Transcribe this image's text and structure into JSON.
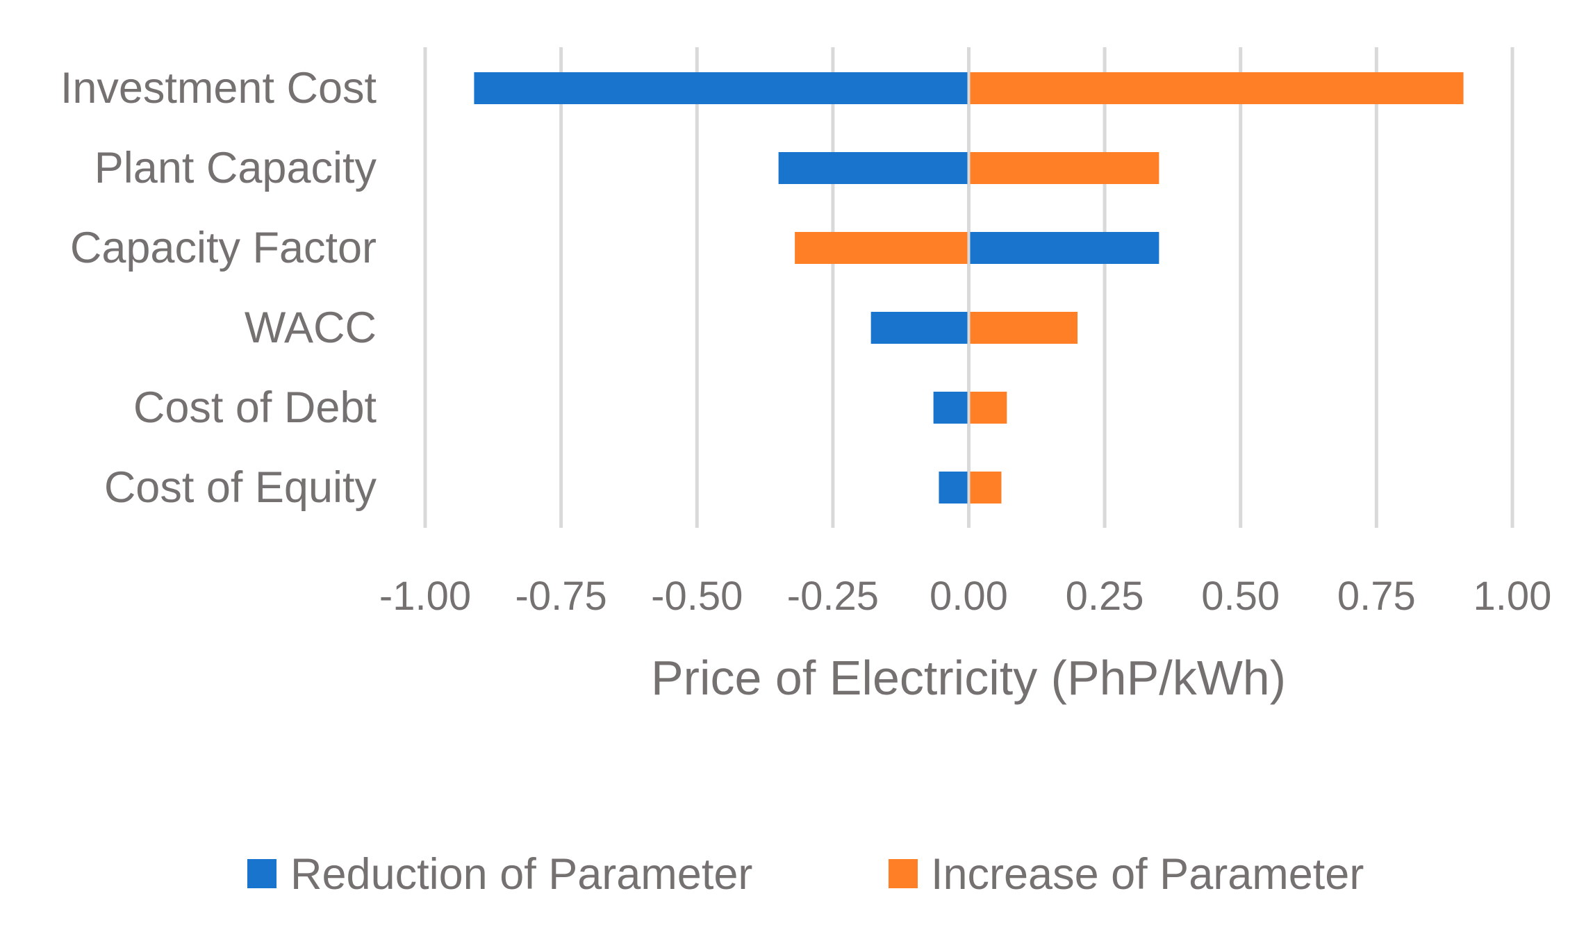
{
  "chart_data": {
    "type": "bar",
    "orientation": "horizontal",
    "stacked": "diverging",
    "title": "",
    "xlabel": "Price of Electricity (PhP/kWh)",
    "ylabel": "",
    "xlim": [
      -1.0,
      1.0
    ],
    "xticks": [
      -1.0,
      -0.75,
      -0.5,
      -0.25,
      0.0,
      0.25,
      0.5,
      0.75,
      1.0
    ],
    "xtick_labels": [
      "-1.00",
      "-0.75",
      "-0.50",
      "-0.25",
      "0.00",
      "0.25",
      "0.50",
      "0.75",
      "1.00"
    ],
    "grid": "vertical",
    "categories": [
      "Investment Cost",
      "Plant Capacity",
      "Capacity Factor",
      "WACC",
      "Cost of Debt",
      "Cost of Equity"
    ],
    "series": [
      {
        "name": "Reduction of Parameter",
        "color": "#1874CD",
        "values": [
          -0.91,
          -0.35,
          0.35,
          -0.18,
          -0.065,
          -0.055
        ]
      },
      {
        "name": "Increase of Parameter",
        "color": "#FF7F27",
        "values": [
          0.91,
          0.35,
          -0.32,
          0.2,
          0.07,
          0.06
        ]
      }
    ],
    "legend": "bottom"
  }
}
